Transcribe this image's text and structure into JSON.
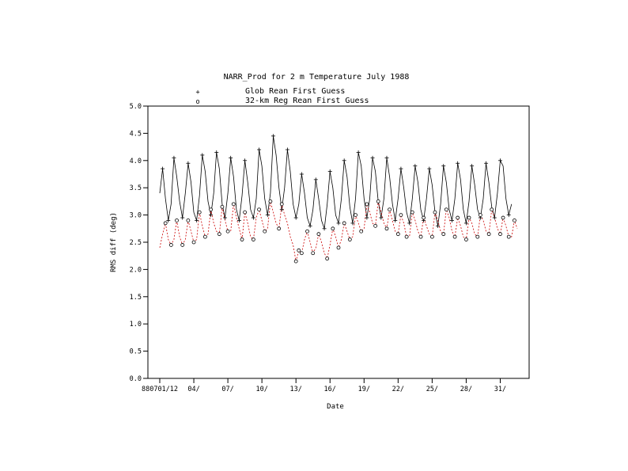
{
  "chart_data": {
    "type": "line",
    "title": "NARR_Prod for 2 m Temperature July 1988",
    "xlabel": "Date",
    "ylabel": "RMS diff (deg)",
    "ylim": [
      0.0,
      5.0
    ],
    "yticks": [
      "0.0",
      "0.5",
      "1.0",
      "1.5",
      "2.0",
      "2.5",
      "3.0",
      "3.5",
      "4.0",
      "4.5",
      "5.0"
    ],
    "xlim": [
      0,
      126
    ],
    "x_ticks": [
      {
        "x": 0,
        "label": "880701/12"
      },
      {
        "x": 12,
        "label": "04/"
      },
      {
        "x": 24,
        "label": "07/"
      },
      {
        "x": 36,
        "label": "10/"
      },
      {
        "x": 48,
        "label": "13/"
      },
      {
        "x": 60,
        "label": "16/"
      },
      {
        "x": 72,
        "label": "19/"
      },
      {
        "x": 84,
        "label": "22/"
      },
      {
        "x": 96,
        "label": "25/"
      },
      {
        "x": 108,
        "label": "28/"
      },
      {
        "x": 120,
        "label": "31/"
      }
    ],
    "x_step_hours": 6,
    "grid": false,
    "series": [
      {
        "name": "Glob Rean First Guess",
        "marker": "+",
        "style": "solid",
        "color": "#000000",
        "values": [
          3.4,
          3.85,
          3.3,
          2.9,
          3.2,
          4.05,
          3.7,
          3.25,
          2.95,
          3.4,
          3.95,
          3.6,
          3.05,
          2.9,
          3.35,
          4.1,
          3.8,
          3.25,
          3.0,
          3.4,
          4.15,
          3.85,
          3.2,
          2.95,
          3.4,
          4.05,
          3.7,
          3.1,
          2.9,
          3.35,
          4.0,
          3.6,
          3.1,
          2.95,
          3.3,
          4.2,
          3.9,
          3.3,
          3.0,
          3.4,
          4.45,
          4.1,
          3.5,
          3.1,
          3.5,
          4.2,
          3.8,
          3.2,
          2.95,
          3.2,
          3.75,
          3.4,
          2.95,
          2.8,
          3.1,
          3.65,
          3.3,
          2.9,
          2.75,
          3.2,
          3.8,
          3.5,
          3.0,
          2.85,
          3.3,
          4.0,
          3.7,
          3.15,
          2.85,
          3.3,
          4.15,
          3.9,
          3.3,
          2.95,
          3.3,
          4.05,
          3.8,
          3.25,
          2.95,
          3.3,
          4.05,
          3.7,
          3.2,
          2.9,
          3.3,
          3.85,
          3.5,
          3.05,
          2.85,
          3.3,
          3.9,
          3.6,
          3.1,
          2.9,
          3.3,
          3.85,
          3.55,
          3.05,
          2.8,
          3.2,
          3.9,
          3.6,
          3.1,
          2.9,
          3.3,
          3.95,
          3.65,
          3.1,
          2.85,
          3.25,
          3.9,
          3.55,
          3.1,
          2.95,
          3.3,
          3.95,
          3.6,
          3.15,
          2.95,
          3.4,
          4.0,
          3.9,
          3.3,
          3.0,
          3.2
        ]
      },
      {
        "name": "32-km Reg Rean First Guess",
        "marker": "o",
        "style": "dashed",
        "color": "#cc0000",
        "values": [
          2.4,
          2.65,
          2.85,
          2.55,
          2.45,
          2.55,
          2.9,
          2.6,
          2.45,
          2.55,
          2.9,
          2.7,
          2.5,
          2.55,
          3.05,
          2.8,
          2.6,
          2.65,
          3.1,
          2.85,
          2.7,
          2.65,
          3.15,
          2.9,
          2.7,
          2.7,
          3.2,
          2.95,
          2.75,
          2.55,
          3.05,
          2.85,
          2.6,
          2.55,
          2.95,
          3.1,
          2.9,
          2.7,
          2.75,
          3.25,
          3.05,
          2.85,
          2.75,
          3.2,
          3.0,
          2.85,
          2.6,
          2.45,
          2.15,
          2.35,
          2.3,
          2.55,
          2.7,
          2.5,
          2.3,
          2.4,
          2.65,
          2.5,
          2.3,
          2.2,
          2.45,
          2.75,
          2.6,
          2.4,
          2.55,
          2.85,
          2.7,
          2.55,
          2.6,
          3.0,
          2.85,
          2.7,
          2.75,
          3.2,
          3.05,
          2.85,
          2.8,
          3.25,
          3.05,
          2.85,
          2.75,
          3.1,
          2.9,
          2.7,
          2.65,
          3.0,
          2.85,
          2.6,
          2.6,
          3.05,
          2.9,
          2.7,
          2.6,
          2.95,
          2.8,
          2.65,
          2.6,
          3.05,
          2.9,
          2.7,
          2.65,
          3.1,
          2.95,
          2.7,
          2.6,
          2.95,
          2.8,
          2.6,
          2.55,
          2.95,
          2.85,
          2.65,
          2.6,
          3.0,
          2.9,
          2.7,
          2.65,
          3.1,
          2.95,
          2.75,
          2.65,
          2.95,
          2.8,
          2.6,
          2.6,
          2.9,
          2.75
        ]
      }
    ],
    "legend": {
      "placement": "top-center",
      "entries": [
        {
          "symbol": "+",
          "label": "Glob Rean First Guess"
        },
        {
          "symbol": "o",
          "label": "32-km Reg Rean First Guess"
        }
      ]
    }
  }
}
